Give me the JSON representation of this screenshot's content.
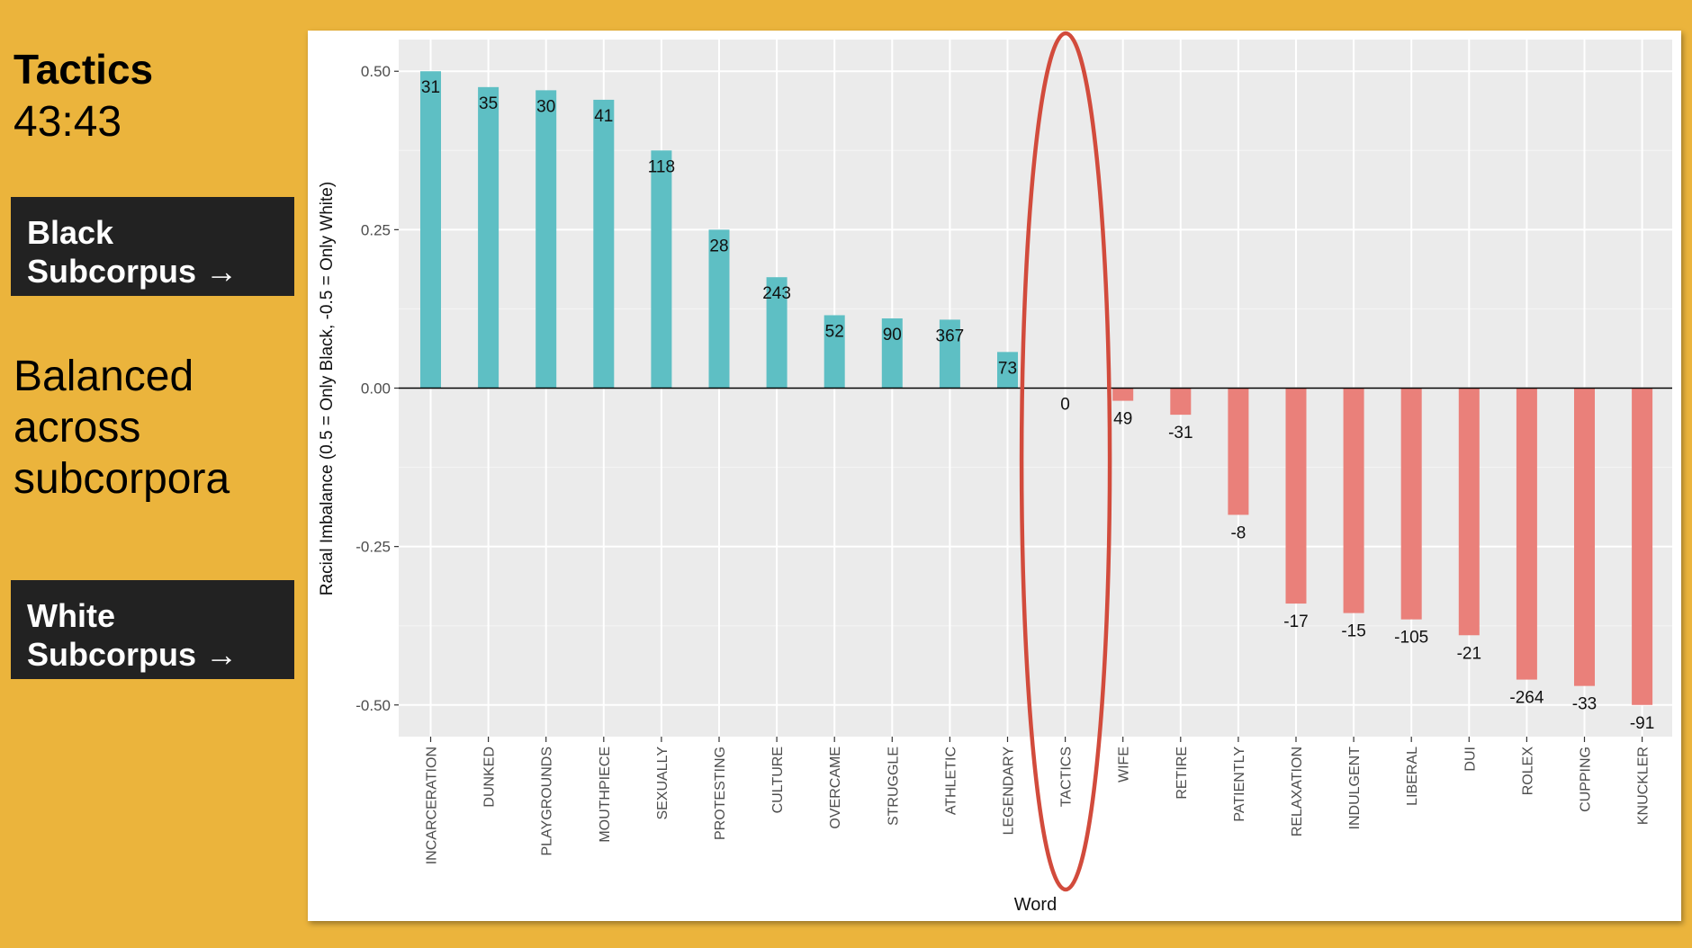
{
  "sidebar": {
    "title": "Tactics",
    "ratio": "43:43",
    "black_label_line1": "Black",
    "black_label_line2": "Subcorpus →",
    "balanced_line1": "Balanced",
    "balanced_line2": "across",
    "balanced_line3": "subcorpora",
    "white_label_line1": "White",
    "white_label_line2": "Subcorpus →"
  },
  "colors": {
    "background": "#EBB43C",
    "positive_bar": "#5EBFC4",
    "negative_bar": "#EA807A",
    "highlight_ellipse": "#D24B3C",
    "label_box": "#222222"
  },
  "chart_data": {
    "type": "bar",
    "xlabel": "Word",
    "ylabel": "Racial Imbalance (0.5 = Only Black, -0.5 = Only White)",
    "ylim": [
      -0.55,
      0.55
    ],
    "yticks": [
      -0.5,
      -0.25,
      0,
      0.25,
      0.5
    ],
    "ytick_labels": [
      "-0.50",
      "-0.25",
      "0.00",
      "0.25",
      "0.50"
    ],
    "grid": true,
    "highlighted_category": "TACTICS",
    "categories": [
      "INCARCERATION",
      "DUNKED",
      "PLAYGROUNDS",
      "MOUTHPIECE",
      "SEXUALLY",
      "PROTESTING",
      "CULTURE",
      "OVERCAME",
      "STRUGGLE",
      "ATHLETIC",
      "LEGENDARY",
      "TACTICS",
      "WIFE",
      "RETIRE",
      "PATIENTLY",
      "RELAXATION",
      "INDULGENT",
      "LIBERAL",
      "DUI",
      "ROLEX",
      "CUPPING",
      "KNUCKLER"
    ],
    "values": [
      0.5,
      0.475,
      0.47,
      0.455,
      0.375,
      0.25,
      0.175,
      0.115,
      0.11,
      0.108,
      0.057,
      0.0,
      -0.02,
      -0.042,
      -0.2,
      -0.34,
      -0.355,
      -0.365,
      -0.39,
      -0.46,
      -0.47,
      -0.5
    ],
    "data_labels": [
      "31",
      "35",
      "30",
      "41",
      "118",
      "28",
      "243",
      "52",
      "90",
      "367",
      "73",
      "0",
      "49",
      "-31",
      "-8",
      "-17",
      "-15",
      "-105",
      "-21",
      "-264",
      "-33",
      "-91"
    ]
  }
}
